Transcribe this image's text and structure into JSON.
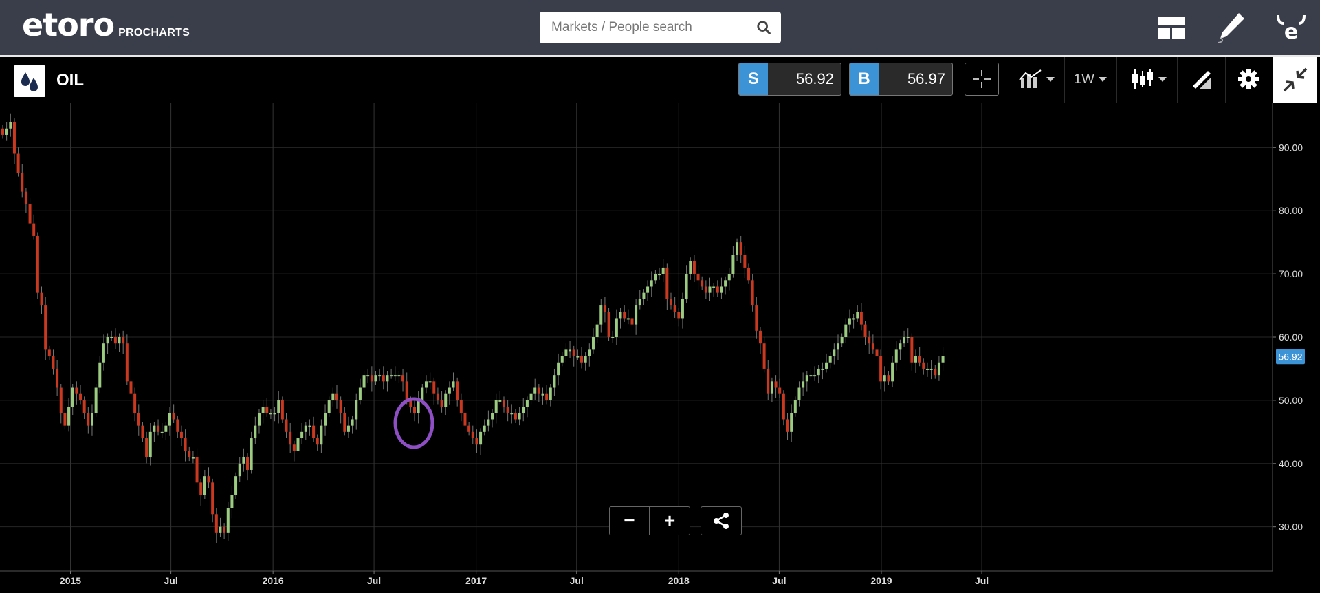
{
  "header": {
    "logo_text": "etoro",
    "logo_sub": "PROCHARTS",
    "search_placeholder": "Markets / People search"
  },
  "instrument": {
    "name": "OIL",
    "sell_tag": "S",
    "sell_price": "56.92",
    "buy_tag": "B",
    "buy_price": "56.97",
    "timeframe": "1W"
  },
  "colors": {
    "up": "#9ccc82",
    "down": "#c9381f",
    "accent": "#3c93d6",
    "highlight_circle": "#8e4fc4"
  },
  "chart_data": {
    "type": "candlestick",
    "ylim": [
      23,
      97
    ],
    "y_ticks": [
      "90.00",
      "80.00",
      "70.00",
      "60.00",
      "50.00",
      "40.00",
      "30.00"
    ],
    "y_tick_values": [
      90,
      80,
      70,
      60,
      50,
      40,
      30
    ],
    "x_ticks": [
      "2015",
      "Jul",
      "2016",
      "Jul",
      "2017",
      "Jul",
      "2018",
      "Jul",
      "2019",
      "Jul"
    ],
    "x_tick_dates": [
      "2015-01-01",
      "2015-07-01",
      "2016-01-01",
      "2016-07-01",
      "2017-01-01",
      "2017-07-01",
      "2018-01-01",
      "2018-07-01",
      "2019-01-01",
      "2019-07-01"
    ],
    "last_price_label": "56.92",
    "last_price": 56.92,
    "start_date": "2014-09-01",
    "weekly_close": [
      92,
      93,
      94,
      89,
      86,
      83,
      81,
      78,
      76,
      67,
      65,
      58,
      57,
      55,
      52,
      48,
      46,
      49,
      52,
      51,
      50,
      48,
      46,
      48,
      52,
      56,
      59,
      60,
      60,
      59,
      60,
      59,
      53,
      51,
      48,
      46,
      44,
      41,
      45,
      46,
      45,
      45,
      46,
      48,
      47,
      45,
      44,
      42,
      41,
      41,
      37,
      35,
      38,
      37,
      32,
      29,
      30,
      29,
      33,
      35,
      38,
      40,
      41,
      39,
      44,
      46,
      48,
      49,
      48,
      48,
      48,
      50,
      47,
      45,
      43,
      42,
      44,
      45,
      46,
      46,
      44,
      43,
      46,
      48,
      50,
      51,
      50,
      48,
      45,
      46,
      47,
      50,
      52,
      54,
      54,
      53,
      54,
      54,
      53,
      54,
      54,
      54,
      54,
      53,
      50,
      49,
      48,
      50,
      52,
      53,
      53,
      51,
      50,
      49,
      51,
      52,
      53,
      50,
      48,
      46,
      45,
      44,
      43,
      45,
      46,
      47,
      48,
      50,
      50,
      49,
      48,
      48,
      47,
      48,
      49,
      50,
      51,
      52,
      51,
      51,
      50,
      52,
      54,
      56,
      57,
      58,
      58,
      57,
      57,
      56,
      57,
      58,
      60,
      62,
      65,
      64,
      60,
      60,
      63,
      64,
      63,
      63,
      62,
      65,
      66,
      67,
      68,
      69,
      70,
      70,
      71,
      66,
      65,
      64,
      63,
      66,
      70,
      72,
      70,
      69,
      68,
      67,
      68,
      68,
      67,
      68,
      69,
      70,
      73,
      75,
      73,
      71,
      69,
      65,
      61,
      59,
      55,
      51,
      53,
      52,
      51,
      47,
      45,
      48,
      50,
      52,
      53,
      54,
      54,
      54,
      55,
      55,
      56,
      57,
      58,
      59,
      60,
      62,
      63,
      63,
      64,
      62,
      60,
      59,
      58,
      57,
      53,
      54,
      53,
      56,
      58,
      59,
      60,
      60,
      56,
      57,
      56,
      55,
      55,
      55,
      54,
      56,
      57
    ]
  },
  "toolbar": {
    "zoom_out": "−",
    "zoom_in": "+"
  }
}
